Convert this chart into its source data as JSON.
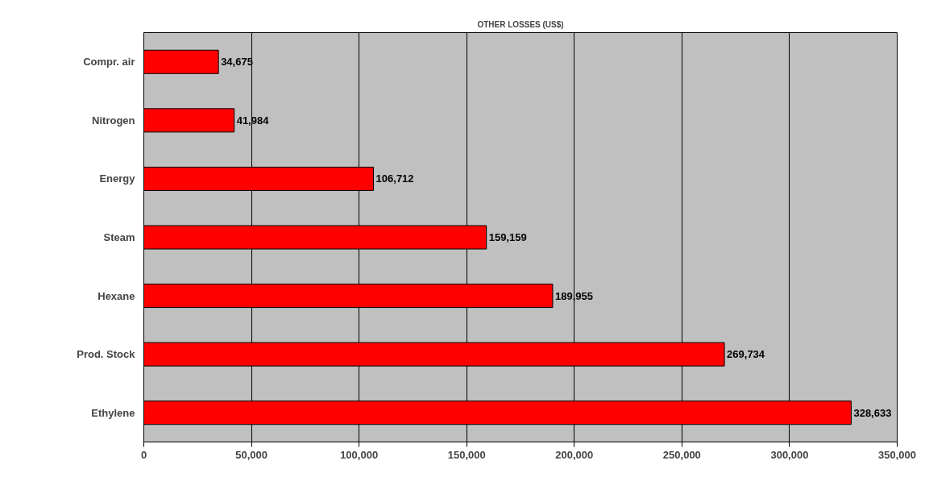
{
  "chart_data": {
    "type": "bar",
    "orientation": "horizontal",
    "title": "OTHER LOSSES (US$)",
    "categories": [
      "Compr. air",
      "Nitrogen",
      "Energy",
      "Steam",
      "Hexane",
      "Prod. Stock",
      "Ethylene"
    ],
    "values": [
      34675,
      41984,
      106712,
      159159,
      189955,
      269734,
      328633
    ],
    "value_labels": [
      "34,675",
      "41,984",
      "106,712",
      "159,159",
      "189,955",
      "269,734",
      "328,633"
    ],
    "color": "#ff0000",
    "grid": "x",
    "xlim": [
      0,
      350000
    ],
    "xticks": [
      {
        "value": 0,
        "label": "0"
      },
      {
        "value": 50000,
        "label": "50,000"
      },
      {
        "value": 100000,
        "label": "100,000"
      },
      {
        "value": 150000,
        "label": "150,000"
      },
      {
        "value": 200000,
        "label": "200,000"
      },
      {
        "value": 250000,
        "label": "250,000"
      },
      {
        "value": 300000,
        "label": "300,000"
      },
      {
        "value": 350000,
        "label": "350,000"
      }
    ]
  }
}
